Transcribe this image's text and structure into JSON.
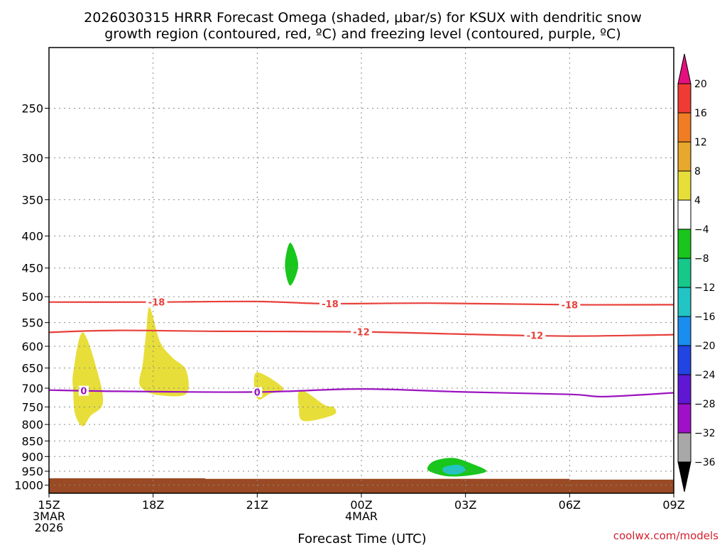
{
  "title": {
    "line1": "2026030315 HRRR Forecast Omega (shaded, μbar/s) for KSUX with dendritic snow",
    "line2": "growth region (contoured, red, ºC) and freezing level (contoured, purple, ºC)"
  },
  "credit": "coolwx.com/models",
  "colors": {
    "dgz_contour": "#e8403b",
    "freezing_contour": "#9b12c0",
    "ground": "#9a4a24",
    "grid": "#8a8a8a"
  },
  "chart_data": {
    "type": "heatmap",
    "title": "2026030315 HRRR Forecast Omega (shaded, μbar/s) for KSUX with dendritic snow growth region (contoured, red, ºC) and freezing level (contoured, purple, ºC)",
    "xlabel": "Forecast Time (UTC)",
    "ylabel": "",
    "x_range_hours": [
      0,
      18
    ],
    "y_range_hpa": [
      200,
      1030
    ],
    "y_scale": "log-pressure",
    "grid": true,
    "x_ticks": [
      {
        "hour": 0,
        "lines": [
          "15Z",
          "3MAR",
          "2026"
        ]
      },
      {
        "hour": 3,
        "lines": [
          "18Z"
        ]
      },
      {
        "hour": 6,
        "lines": [
          "21Z"
        ]
      },
      {
        "hour": 9,
        "lines": [
          "00Z",
          "4MAR"
        ]
      },
      {
        "hour": 12,
        "lines": [
          "03Z"
        ]
      },
      {
        "hour": 15,
        "lines": [
          "06Z"
        ]
      },
      {
        "hour": 18,
        "lines": [
          "09Z"
        ]
      }
    ],
    "y_ticks": [
      250,
      300,
      350,
      400,
      450,
      500,
      550,
      600,
      650,
      700,
      750,
      800,
      850,
      900,
      950,
      1000
    ],
    "colorbar": {
      "labels": [
        "20",
        "16",
        "12",
        "8",
        "4",
        "−4",
        "−8",
        "−12",
        "−16",
        "−20",
        "−24",
        "−28",
        "−32",
        "−36"
      ],
      "bands": [
        {
          "range": [
            20,
            99
          ],
          "color": "#e5107f"
        },
        {
          "range": [
            16,
            20
          ],
          "color": "#ef3b34"
        },
        {
          "range": [
            12,
            16
          ],
          "color": "#f07d24"
        },
        {
          "range": [
            8,
            12
          ],
          "color": "#e8a82b"
        },
        {
          "range": [
            4,
            8
          ],
          "color": "#e8de3a"
        },
        {
          "range": [
            -4,
            4
          ],
          "color": "#ffffff"
        },
        {
          "range": [
            -8,
            -4
          ],
          "color": "#18c61c"
        },
        {
          "range": [
            -12,
            -8
          ],
          "color": "#16c88a"
        },
        {
          "range": [
            -16,
            -12
          ],
          "color": "#22c4c4"
        },
        {
          "range": [
            -20,
            -16
          ],
          "color": "#1a8ef0"
        },
        {
          "range": [
            -24,
            -20
          ],
          "color": "#2244e2"
        },
        {
          "range": [
            -28,
            -24
          ],
          "color": "#6017d4"
        },
        {
          "range": [
            -32,
            -28
          ],
          "color": "#a010c8"
        },
        {
          "range": [
            -36,
            -32
          ],
          "color": "#a8a8a8"
        },
        {
          "range": [
            -99,
            -36
          ],
          "color": "#000000"
        }
      ]
    },
    "omega_regions": [
      {
        "label": "4 to 8",
        "color": "#e8de3a",
        "points": [
          [
            0.97,
            570
          ],
          [
            1.4,
            660
          ],
          [
            1.55,
            740
          ],
          [
            1.2,
            775
          ],
          [
            0.97,
            805
          ],
          [
            0.75,
            770
          ],
          [
            0.7,
            710
          ],
          [
            0.7,
            660
          ]
        ]
      },
      {
        "label": "4 to 8",
        "color": "#e8de3a",
        "points": [
          [
            2.9,
            520
          ],
          [
            3.2,
            590
          ],
          [
            3.55,
            625
          ],
          [
            3.95,
            655
          ],
          [
            3.95,
            715
          ],
          [
            3.15,
            718
          ],
          [
            2.75,
            705
          ],
          [
            2.6,
            685
          ],
          [
            2.7,
            640
          ],
          [
            2.8,
            570
          ]
        ]
      },
      {
        "label": "4 to 8",
        "color": "#e8de3a",
        "points": [
          [
            6.0,
            660
          ],
          [
            6.75,
            700
          ],
          [
            6.35,
            715
          ],
          [
            6.05,
            730
          ],
          [
            5.92,
            705
          ]
        ]
      },
      {
        "label": "4 to 8",
        "color": "#e8de3a",
        "points": [
          [
            7.25,
            705
          ],
          [
            7.95,
            745
          ],
          [
            8.2,
            750
          ],
          [
            8.2,
            772
          ],
          [
            7.35,
            790
          ],
          [
            7.2,
            755
          ]
        ]
      },
      {
        "label": "-8 to -4",
        "color": "#18c61c",
        "points": [
          [
            6.95,
            410
          ],
          [
            7.18,
            445
          ],
          [
            6.95,
            480
          ],
          [
            6.8,
            445
          ]
        ]
      },
      {
        "label": "-8 to -4",
        "color": "#18c61c",
        "points": [
          [
            11.1,
            915
          ],
          [
            11.65,
            905
          ],
          [
            12.2,
            925
          ],
          [
            12.6,
            950
          ],
          [
            12.1,
            965
          ],
          [
            11.5,
            968
          ],
          [
            11.05,
            955
          ],
          [
            10.9,
            940
          ]
        ]
      },
      {
        "label": "-16 to -12",
        "color": "#22c4c4",
        "points": [
          [
            11.4,
            935
          ],
          [
            11.8,
            928
          ],
          [
            12.0,
            945
          ],
          [
            11.8,
            960
          ],
          [
            11.5,
            960
          ],
          [
            11.35,
            948
          ]
        ]
      }
    ],
    "ground_surface": [
      [
        0,
        975
      ],
      [
        4.5,
        977
      ],
      [
        13,
        977
      ],
      [
        15,
        980
      ],
      [
        18,
        980
      ]
    ],
    "contours": [
      {
        "name": "-18",
        "color": "#e8403b",
        "labels": [
          {
            "hour": 3.1
          },
          {
            "hour": 8.1
          },
          {
            "hour": 15.0
          }
        ],
        "points": [
          [
            0,
            510
          ],
          [
            3,
            510
          ],
          [
            6,
            509
          ],
          [
            8,
            513
          ],
          [
            11,
            512
          ],
          [
            15,
            515
          ],
          [
            18,
            515
          ]
        ]
      },
      {
        "name": "-12",
        "color": "#e8403b",
        "labels": [
          {
            "hour": 9.0
          },
          {
            "hour": 14.0
          }
        ],
        "points": [
          [
            0,
            570
          ],
          [
            2,
            566
          ],
          [
            5,
            568
          ],
          [
            9,
            569
          ],
          [
            12,
            574
          ],
          [
            15,
            578
          ],
          [
            18,
            575
          ]
        ]
      },
      {
        "name": "0",
        "color": "#9b12c0",
        "labels": [
          {
            "hour": 1.0
          },
          {
            "hour": 6.0
          }
        ],
        "points": [
          [
            0,
            705
          ],
          [
            2,
            708
          ],
          [
            6,
            710
          ],
          [
            9,
            702
          ],
          [
            12,
            710
          ],
          [
            15,
            716
          ],
          [
            16,
            722
          ],
          [
            18,
            712
          ]
        ]
      }
    ]
  }
}
